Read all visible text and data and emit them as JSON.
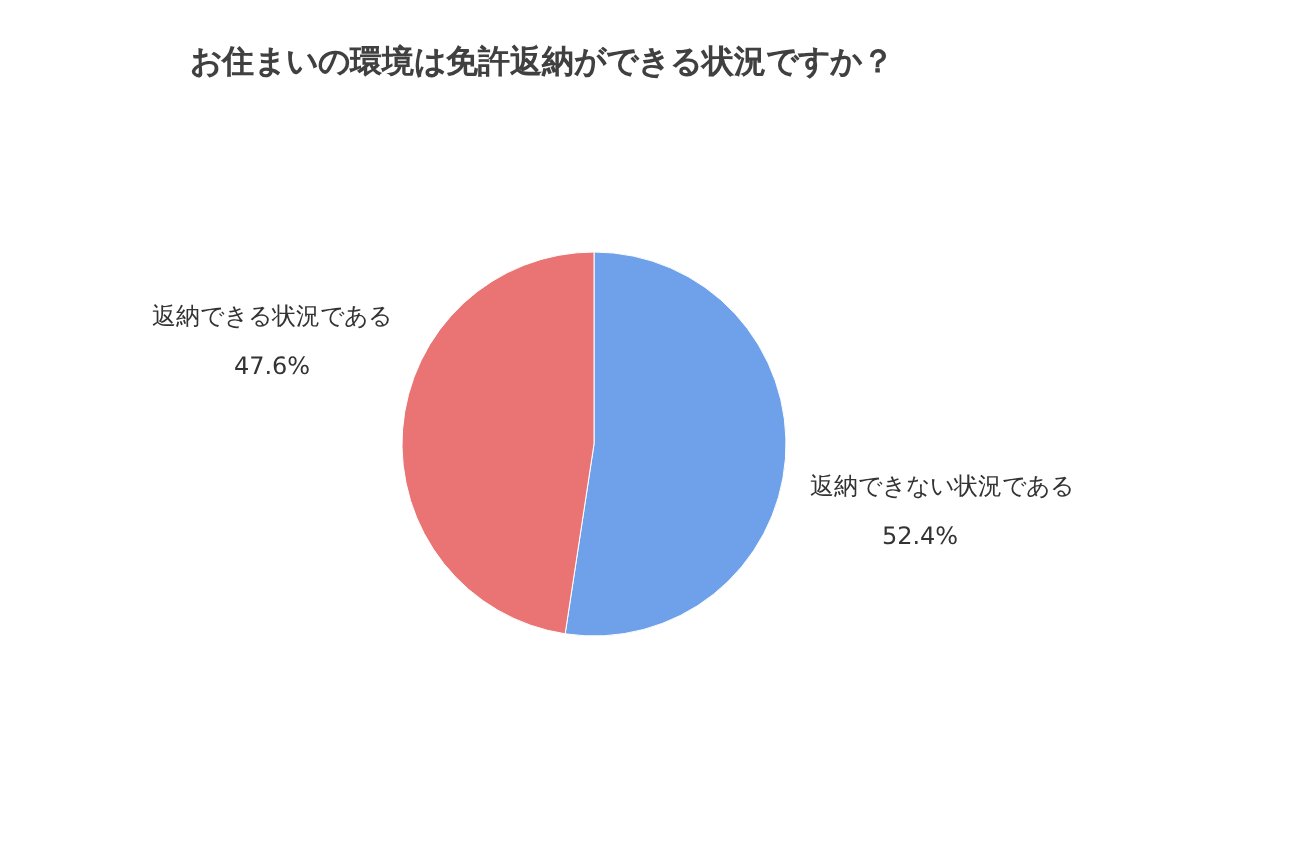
{
  "chart_data": {
    "type": "pie",
    "title": "お住まいの環境は免許返納ができる状況ですか？",
    "categories": [
      "返納できない状況である",
      "返納できる状況である"
    ],
    "values": [
      52.4,
      47.6
    ],
    "colors": [
      "#6fa1ea",
      "#ea7474"
    ],
    "value_labels": [
      "52.4%",
      "47.6%"
    ]
  }
}
